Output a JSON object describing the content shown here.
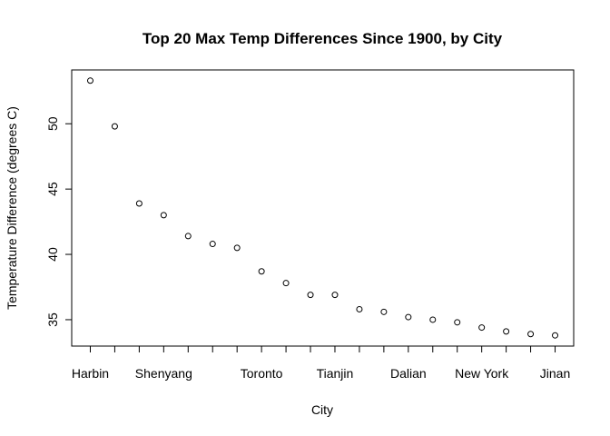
{
  "chart_data": {
    "type": "scatter",
    "title": "Top 20 Max Temp Differences Since 1900, by City",
    "xlabel": "City",
    "ylabel": "Temperature Difference (degrees C)",
    "x": [
      1,
      2,
      3,
      4,
      5,
      6,
      7,
      8,
      9,
      10,
      11,
      12,
      13,
      14,
      15,
      16,
      17,
      18,
      19,
      20
    ],
    "y": [
      53.3,
      49.8,
      43.9,
      43.0,
      41.4,
      40.8,
      40.5,
      38.7,
      37.8,
      36.9,
      36.9,
      35.8,
      35.6,
      35.2,
      35.0,
      34.8,
      34.4,
      34.1,
      33.9,
      33.8
    ],
    "x_tick_labels": [
      {
        "x": 1,
        "label": "Harbin"
      },
      {
        "x": 4,
        "label": "Shenyang"
      },
      {
        "x": 8,
        "label": "Toronto"
      },
      {
        "x": 11,
        "label": "Tianjin"
      },
      {
        "x": 14,
        "label": "Dalian"
      },
      {
        "x": 17,
        "label": "New York"
      },
      {
        "x": 20,
        "label": "Jinan"
      }
    ],
    "y_ticks": [
      35,
      40,
      45,
      50
    ],
    "xlim": [
      0.24,
      20.76
    ],
    "ylim": [
      32.98,
      54.12
    ],
    "grid": false,
    "legend": "none"
  }
}
